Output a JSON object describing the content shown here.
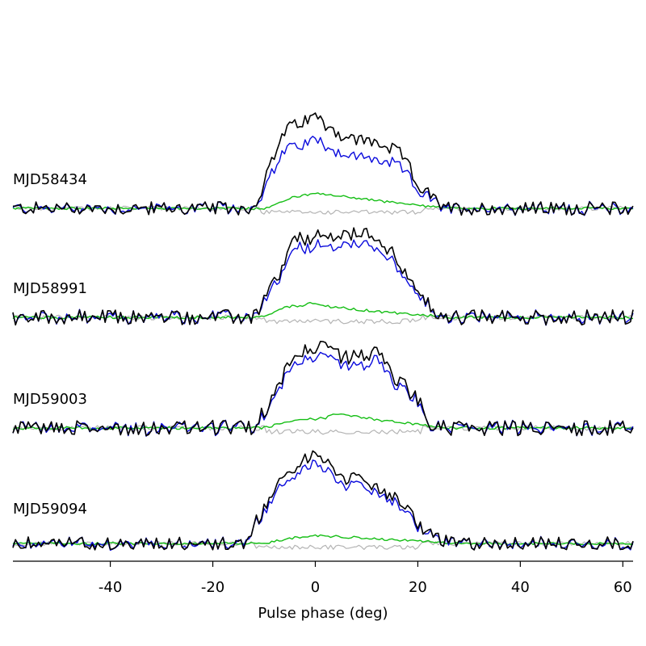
{
  "chart_data": {
    "type": "line",
    "xlabel": "Pulse phase (deg)",
    "ylabel": "",
    "xlim": [
      -59,
      62
    ],
    "xticks": [
      -40,
      -20,
      0,
      20,
      40,
      60
    ],
    "tick_labels": [
      "-40",
      "-20",
      "0",
      "20",
      "40",
      "60"
    ],
    "colors": {
      "total": "#000000",
      "linear": "#0a0adc",
      "circular": "#14be14",
      "offpulse": "#b4b4b4"
    },
    "panels": [
      {
        "label": "MJD58434",
        "peak_intensity": 1.0,
        "profile": [
          [
            -59,
            0.0
          ],
          [
            -12,
            0.0
          ],
          [
            -6,
            0.8
          ],
          [
            0,
            0.95
          ],
          [
            6,
            0.72
          ],
          [
            12,
            0.68
          ],
          [
            17,
            0.55
          ],
          [
            20,
            0.25
          ],
          [
            25,
            0.0
          ],
          [
            62,
            0.0
          ]
        ],
        "linear_fraction": 0.75,
        "circular_profile": [
          [
            -59,
            0.0
          ],
          [
            -10,
            0.0
          ],
          [
            -4,
            0.12
          ],
          [
            0,
            0.15
          ],
          [
            6,
            0.12
          ],
          [
            12,
            0.08
          ],
          [
            20,
            0.03
          ],
          [
            26,
            0.0
          ],
          [
            62,
            0.0
          ]
        ],
        "noise": 0.07
      },
      {
        "label": "MJD58991",
        "peak_intensity": 1.0,
        "profile": [
          [
            -59,
            0.0
          ],
          [
            -12,
            0.0
          ],
          [
            -7,
            0.45
          ],
          [
            -4,
            0.8
          ],
          [
            0,
            0.82
          ],
          [
            6,
            0.85
          ],
          [
            12,
            0.85
          ],
          [
            16,
            0.6
          ],
          [
            20,
            0.22
          ],
          [
            25,
            0.0
          ],
          [
            62,
            0.0
          ]
        ],
        "linear_fraction": 0.88,
        "circular_profile": [
          [
            -59,
            0.0
          ],
          [
            -10,
            0.0
          ],
          [
            -6,
            0.1
          ],
          [
            -1,
            0.14
          ],
          [
            6,
            0.09
          ],
          [
            14,
            0.05
          ],
          [
            22,
            0.02
          ],
          [
            26,
            0.0
          ],
          [
            62,
            0.0
          ]
        ],
        "noise": 0.08
      },
      {
        "label": "MJD59003",
        "peak_intensity": 1.0,
        "profile": [
          [
            -59,
            0.0
          ],
          [
            -12,
            0.0
          ],
          [
            -8,
            0.35
          ],
          [
            -4,
            0.8
          ],
          [
            2,
            0.82
          ],
          [
            6,
            0.72
          ],
          [
            12,
            0.78
          ],
          [
            15,
            0.55
          ],
          [
            20,
            0.3
          ],
          [
            23,
            0.0
          ],
          [
            62,
            0.0
          ]
        ],
        "linear_fraction": 0.88,
        "circular_profile": [
          [
            -59,
            0.0
          ],
          [
            -10,
            0.0
          ],
          [
            -4,
            0.08
          ],
          [
            2,
            0.1
          ],
          [
            4,
            0.14
          ],
          [
            10,
            0.1
          ],
          [
            16,
            0.06
          ],
          [
            22,
            0.02
          ],
          [
            26,
            0.0
          ],
          [
            62,
            0.0
          ]
        ],
        "noise": 0.08
      },
      {
        "label": "MJD59094",
        "peak_intensity": 1.0,
        "profile": [
          [
            -59,
            0.0
          ],
          [
            -14,
            0.0
          ],
          [
            -8,
            0.55
          ],
          [
            -3,
            0.85
          ],
          [
            0,
            0.9
          ],
          [
            6,
            0.68
          ],
          [
            12,
            0.6
          ],
          [
            17,
            0.4
          ],
          [
            21,
            0.15
          ],
          [
            26,
            0.0
          ],
          [
            62,
            0.0
          ]
        ],
        "linear_fraction": 0.9,
        "circular_profile": [
          [
            -59,
            0.0
          ],
          [
            -10,
            0.0
          ],
          [
            -4,
            0.06
          ],
          [
            0,
            0.08
          ],
          [
            8,
            0.06
          ],
          [
            14,
            0.04
          ],
          [
            22,
            0.02
          ],
          [
            26,
            0.0
          ],
          [
            62,
            0.0
          ]
        ],
        "noise": 0.07
      }
    ]
  }
}
